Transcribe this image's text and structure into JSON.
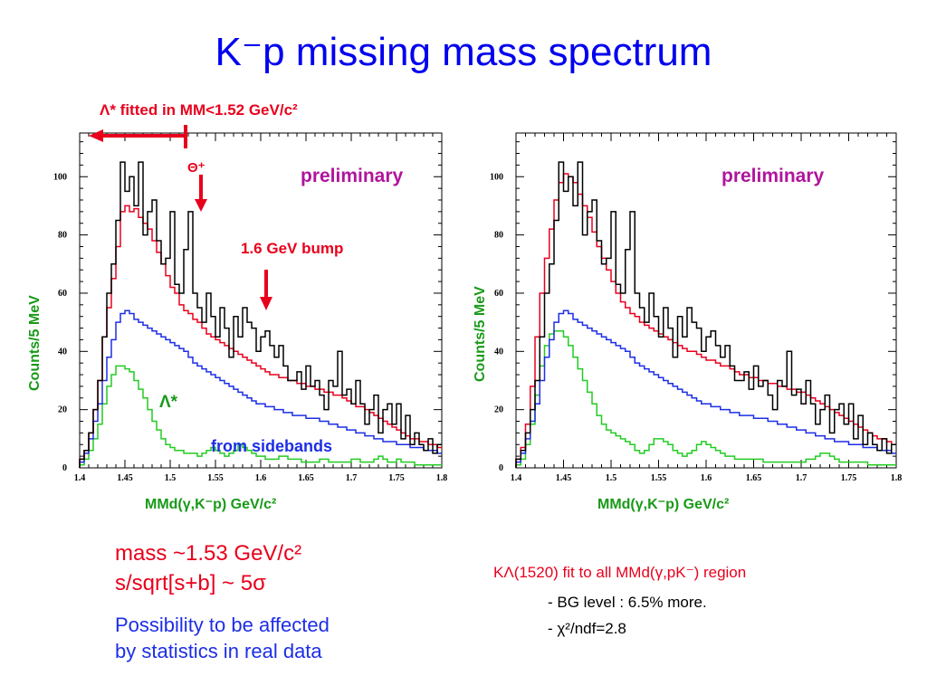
{
  "title": "K⁻p missing mass spectrum",
  "annotations": {
    "lambda_fit": "Λ* fitted in MM<1.52 GeV/c²",
    "theta": "Θ⁺",
    "bump": "1.6 GeV bump",
    "preliminary_left": "preliminary",
    "preliminary_right": "preliminary",
    "lambda_star": "Λ*",
    "sidebands": "from sidebands"
  },
  "notes_left": {
    "mass": "mass ~1.53 GeV/c²",
    "significance": "s/sqrt[s+b] ~ 5σ",
    "possibility_1": "Possibility to be affected",
    "possibility_2": "by statistics in real data"
  },
  "notes_right": {
    "fit": "KΛ(1520) fit to all MMd(γ,pK⁻) region",
    "bg": "- BG level : 6.5% more.",
    "chi2": "- χ²/ndf=2.8"
  },
  "colors": {
    "data": "#000000",
    "fit": "#e8001c",
    "sideband": "#1c2ee6",
    "lambda": "#22cc22",
    "title": "#0000ee",
    "axis_label": "#189a18"
  },
  "chart_data": [
    {
      "type": "line",
      "step": true,
      "xlabel": "MMd(γ,K⁻p) GeV/c²",
      "ylabel": "Counts/5 MeV",
      "xlim": [
        1.4,
        1.8
      ],
      "ylim": [
        0,
        115
      ],
      "x_ticks": [
        "1.4",
        "1.45",
        "1.5",
        "1.55",
        "1.6",
        "1.65",
        "1.7",
        "1.75",
        "1.8"
      ],
      "y_ticks": [
        "0",
        "20",
        "40",
        "60",
        "80",
        "100"
      ],
      "bin_width": 0.005,
      "bin_start": 1.4,
      "series": [
        {
          "key": "data",
          "values": [
            3,
            6,
            12,
            20,
            30,
            45,
            60,
            70,
            85,
            105,
            95,
            100,
            90,
            105,
            80,
            88,
            92,
            78,
            70,
            72,
            88,
            63,
            60,
            75,
            88,
            60,
            55,
            50,
            60,
            52,
            45,
            55,
            48,
            38,
            52,
            45,
            55,
            50,
            48,
            40,
            45,
            47,
            42,
            38,
            42,
            35,
            30,
            30,
            33,
            27,
            35,
            28,
            30,
            25,
            20,
            30,
            28,
            40,
            25,
            27,
            22,
            30,
            22,
            15,
            20,
            25,
            12,
            20,
            22,
            15,
            22,
            10,
            18,
            8,
            12,
            8,
            6,
            10,
            5,
            8
          ]
        },
        {
          "key": "fit",
          "values": [
            3,
            6,
            12,
            20,
            30,
            45,
            55,
            65,
            76,
            88,
            90,
            88,
            89,
            86,
            84,
            82,
            78,
            74,
            70,
            66,
            62,
            60,
            56,
            54,
            53,
            51,
            50,
            48,
            46,
            45,
            44,
            43,
            42,
            41,
            40,
            39,
            38,
            37,
            36,
            35,
            34,
            33,
            32,
            32,
            31,
            31,
            30,
            30,
            29,
            29,
            28,
            28,
            27,
            27,
            26,
            26,
            25,
            25,
            24,
            23,
            22,
            21,
            21,
            20,
            19,
            18,
            17,
            16,
            15,
            14,
            13,
            12,
            11,
            10,
            10,
            9,
            9,
            8,
            8,
            7
          ]
        },
        {
          "key": "sideband",
          "values": [
            2,
            5,
            10,
            16,
            22,
            30,
            38,
            44,
            50,
            53,
            54,
            53,
            51,
            50,
            49,
            48,
            47,
            46,
            45,
            44,
            43,
            42,
            41,
            40,
            38,
            36,
            35,
            34,
            33,
            32,
            31,
            30,
            29,
            28,
            27,
            26,
            25,
            24,
            23,
            22,
            22,
            21,
            21,
            20,
            20,
            19,
            19,
            18,
            18,
            18,
            17,
            17,
            17,
            16,
            16,
            15,
            15,
            14,
            14,
            13,
            13,
            12,
            12,
            11,
            11,
            10,
            10,
            9,
            9,
            9,
            8,
            8,
            8,
            7,
            7,
            7,
            6,
            6,
            6,
            5
          ]
        },
        {
          "key": "lambda",
          "values": [
            1,
            3,
            6,
            10,
            15,
            22,
            28,
            32,
            35,
            35,
            34,
            33,
            30,
            27,
            24,
            20,
            16,
            13,
            10,
            8,
            7,
            6,
            6,
            5,
            5,
            5,
            4,
            5,
            6,
            7,
            6,
            5,
            4,
            5,
            6,
            8,
            7,
            6,
            5,
            4,
            4,
            3,
            3,
            3,
            4,
            4,
            3,
            3,
            3,
            2,
            2,
            2,
            2,
            3,
            3,
            2,
            2,
            2,
            2,
            2,
            3,
            3,
            2,
            2,
            2,
            3,
            4,
            3,
            2,
            2,
            3,
            2,
            2,
            2,
            1,
            1,
            1,
            1,
            1,
            1
          ]
        }
      ]
    },
    {
      "type": "line",
      "step": true,
      "xlabel": "MMd(γ,K⁻p) GeV/c²",
      "ylabel": "Counts/5 MeV",
      "xlim": [
        1.4,
        1.8
      ],
      "ylim": [
        0,
        115
      ],
      "x_ticks": [
        "1.4",
        "1.45",
        "1.5",
        "1.55",
        "1.6",
        "1.65",
        "1.7",
        "1.75",
        "1.8"
      ],
      "y_ticks": [
        "0",
        "20",
        "40",
        "60",
        "80",
        "100"
      ],
      "bin_width": 0.005,
      "bin_start": 1.4,
      "series": [
        {
          "key": "data",
          "values": [
            3,
            6,
            12,
            20,
            30,
            45,
            60,
            70,
            85,
            105,
            95,
            100,
            90,
            105,
            80,
            88,
            92,
            78,
            70,
            72,
            88,
            63,
            60,
            75,
            88,
            60,
            55,
            50,
            60,
            52,
            45,
            55,
            48,
            38,
            52,
            45,
            55,
            50,
            48,
            40,
            45,
            47,
            42,
            38,
            42,
            35,
            30,
            30,
            33,
            27,
            35,
            28,
            30,
            25,
            20,
            30,
            28,
            40,
            25,
            27,
            22,
            30,
            22,
            15,
            20,
            25,
            12,
            20,
            22,
            15,
            22,
            10,
            18,
            8,
            12,
            8,
            6,
            10,
            5,
            8
          ]
        },
        {
          "key": "fit",
          "values": [
            3,
            7,
            15,
            28,
            45,
            60,
            72,
            82,
            92,
            98,
            101,
            100,
            98,
            94,
            90,
            86,
            81,
            76,
            72,
            68,
            64,
            60,
            57,
            55,
            53,
            52,
            50,
            49,
            48,
            47,
            46,
            45,
            44,
            43,
            42,
            41,
            40,
            40,
            39,
            38,
            37,
            37,
            36,
            35,
            35,
            34,
            33,
            32,
            32,
            31,
            31,
            30,
            30,
            29,
            29,
            28,
            28,
            27,
            27,
            26,
            26,
            25,
            24,
            23,
            22,
            21,
            20,
            19,
            18,
            17,
            16,
            15,
            14,
            13,
            12,
            11,
            10,
            10,
            9,
            8
          ]
        },
        {
          "key": "sideband",
          "values": [
            2,
            5,
            10,
            16,
            22,
            30,
            38,
            44,
            50,
            53,
            54,
            53,
            51,
            50,
            49,
            48,
            47,
            46,
            45,
            44,
            43,
            42,
            41,
            40,
            38,
            36,
            35,
            34,
            33,
            32,
            31,
            30,
            29,
            28,
            27,
            26,
            25,
            24,
            23,
            22,
            22,
            21,
            21,
            20,
            20,
            19,
            19,
            18,
            18,
            18,
            17,
            17,
            17,
            16,
            16,
            15,
            15,
            14,
            14,
            13,
            13,
            12,
            12,
            11,
            11,
            10,
            10,
            9,
            9,
            9,
            8,
            8,
            8,
            7,
            7,
            7,
            6,
            6,
            6,
            5
          ]
        },
        {
          "key": "lambda",
          "values": [
            1,
            3,
            8,
            15,
            25,
            35,
            42,
            46,
            47,
            47,
            45,
            42,
            38,
            34,
            30,
            26,
            22,
            18,
            15,
            13,
            12,
            11,
            10,
            9,
            8,
            6,
            5,
            6,
            8,
            10,
            10,
            9,
            8,
            6,
            5,
            4,
            5,
            6,
            8,
            9,
            8,
            7,
            6,
            5,
            4,
            4,
            3,
            3,
            3,
            3,
            3,
            3,
            2,
            2,
            2,
            2,
            2,
            2,
            2,
            2,
            2,
            3,
            3,
            4,
            5,
            5,
            4,
            3,
            2,
            2,
            2,
            2,
            2,
            2,
            1,
            1,
            1,
            1,
            1,
            1
          ]
        }
      ]
    }
  ]
}
